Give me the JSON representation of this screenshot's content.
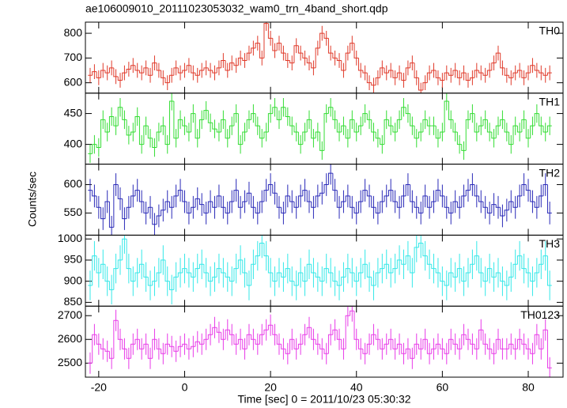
{
  "chart_data": {
    "type": "step",
    "title": "ae106009010_20111023053032_wam0_trn_4band_short.qdp",
    "xlabel": "Time [sec] 0 = 2011/10/23 05:30:32",
    "ylabel": "Counts/sec",
    "xlim": [
      -23.1,
      88.1
    ],
    "xticks": [
      -20,
      0,
      20,
      40,
      60,
      80
    ],
    "x": [
      -22,
      -21,
      -20,
      -19,
      -18,
      -17,
      -16,
      -15,
      -14,
      -13,
      -12,
      -11,
      -10,
      -9,
      -8,
      -7,
      -6,
      -5,
      -4,
      -3,
      -2,
      -1,
      0,
      1,
      2,
      3,
      4,
      5,
      6,
      7,
      8,
      9,
      10,
      11,
      12,
      13,
      14,
      15,
      16,
      17,
      18,
      19,
      20,
      21,
      22,
      23,
      24,
      25,
      26,
      27,
      28,
      29,
      30,
      31,
      32,
      33,
      34,
      35,
      36,
      37,
      38,
      39,
      40,
      41,
      42,
      43,
      44,
      45,
      46,
      47,
      48,
      49,
      50,
      51,
      52,
      53,
      54,
      55,
      56,
      57,
      58,
      59,
      60,
      61,
      62,
      63,
      64,
      65,
      66,
      67,
      68,
      69,
      70,
      71,
      72,
      73,
      74,
      75,
      76,
      77,
      78,
      79,
      80,
      81,
      82,
      83,
      84,
      85
    ],
    "panels": [
      {
        "name": "TH0",
        "color": "#e03a2a",
        "yerr": 30,
        "ylim": [
          558,
          845
        ],
        "yticks": [
          600,
          700,
          800
        ],
        "values": [
          630,
          645,
          620,
          650,
          640,
          660,
          625,
          610,
          640,
          655,
          670,
          650,
          640,
          660,
          630,
          680,
          650,
          620,
          600,
          630,
          660,
          640,
          650,
          670,
          640,
          630,
          650,
          660,
          650,
          640,
          660,
          690,
          650,
          680,
          670,
          700,
          690,
          720,
          740,
          760,
          700,
          840,
          780,
          730,
          760,
          720,
          690,
          680,
          750,
          720,
          700,
          680,
          660,
          740,
          800,
          780,
          720,
          700,
          690,
          650,
          720,
          760,
          700,
          650,
          640,
          600,
          590,
          620,
          660,
          640,
          650,
          620,
          640,
          610,
          660,
          680,
          620,
          570,
          600,
          640,
          650,
          620,
          610,
          640,
          630,
          650,
          620,
          640,
          610,
          620,
          650,
          640,
          630,
          650,
          680,
          720,
          660,
          630,
          620,
          640,
          650,
          620,
          640,
          670,
          650,
          640,
          630,
          640
        ]
      },
      {
        "name": "TH1",
        "color": "#33dd33",
        "yerr": 15,
        "ylim": [
          368,
          483
        ],
        "yticks": [
          400,
          450
        ],
        "values": [
          385,
          400,
          395,
          440,
          420,
          445,
          430,
          460,
          440,
          415,
          420,
          445,
          400,
          430,
          410,
          395,
          420,
          430,
          400,
          470,
          410,
          440,
          430,
          420,
          450,
          410,
          440,
          455,
          435,
          425,
          420,
          440,
          410,
          430,
          450,
          400,
          420,
          440,
          450,
          430,
          410,
          420,
          450,
          460,
          440,
          460,
          445,
          430,
          420,
          400,
          420,
          440,
          410,
          420,
          390,
          450,
          460,
          440,
          420,
          430,
          410,
          440,
          420,
          430,
          450,
          440,
          420,
          410,
          400,
          440,
          430,
          420,
          440,
          460,
          450,
          430,
          410,
          420,
          440,
          430,
          430,
          410,
          420,
          470,
          440,
          420,
          400,
          390,
          440,
          450,
          420,
          430,
          440,
          420,
          410,
          430,
          440,
          420,
          400,
          430,
          420,
          440,
          410,
          430,
          450,
          430,
          420,
          430
        ]
      },
      {
        "name": "TH2",
        "color": "#2a2ab8",
        "yerr": 20,
        "ylim": [
          511,
          636
        ],
        "yticks": [
          550,
          600
        ],
        "values": [
          590,
          580,
          560,
          540,
          570,
          525,
          600,
          575,
          540,
          560,
          580,
          590,
          570,
          550,
          560,
          530,
          545,
          555,
          570,
          560,
          580,
          590,
          570,
          550,
          560,
          575,
          565,
          550,
          570,
          560,
          580,
          560,
          550,
          570,
          590,
          560,
          570,
          585,
          560,
          550,
          570,
          590,
          600,
          585,
          560,
          550,
          580,
          570,
          560,
          580,
          590,
          570,
          560,
          580,
          585,
          600,
          620,
          590,
          560,
          570,
          580,
          560,
          550,
          570,
          590,
          580,
          560,
          550,
          570,
          580,
          590,
          570,
          560,
          580,
          600,
          570,
          560,
          550,
          580,
          560,
          570,
          590,
          580,
          560,
          550,
          570,
          560,
          580,
          590,
          600,
          580,
          570,
          560,
          550,
          565,
          560,
          545,
          555,
          570,
          560,
          580,
          600,
          590,
          570,
          560,
          580,
          600,
          550
        ]
      },
      {
        "name": "TH3",
        "color": "#33e8e8",
        "yerr": 35,
        "ylim": [
          841,
          1009
        ],
        "yticks": [
          850,
          900,
          950,
          1000
        ],
        "values": [
          890,
          960,
          920,
          940,
          900,
          880,
          930,
          950,
          1000,
          930,
          900,
          920,
          940,
          910,
          890,
          900,
          920,
          950,
          900,
          880,
          910,
          920,
          930,
          920,
          910,
          930,
          940,
          920,
          900,
          910,
          930,
          920,
          910,
          900,
          930,
          950,
          920,
          890,
          940,
          960,
          990,
          960,
          920,
          900,
          920,
          910,
          930,
          900,
          890,
          920,
          900,
          940,
          920,
          910,
          900,
          930,
          920,
          900,
          890,
          910,
          930,
          920,
          900,
          920,
          940,
          910,
          890,
          920,
          930,
          940,
          920,
          930,
          950,
          940,
          960,
          920,
          980,
          990,
          960,
          940,
          930,
          920,
          900,
          890,
          920,
          910,
          930,
          900,
          920,
          940,
          960,
          920,
          900,
          930,
          910,
          920,
          900,
          890,
          910,
          940,
          960,
          930,
          920,
          900,
          920,
          940,
          960,
          890
        ]
      },
      {
        "name": "TH0123",
        "color": "#e83ae8",
        "yerr": 45,
        "ylim": [
          2441,
          2740
        ],
        "yticks": [
          2500,
          2600,
          2700
        ],
        "values": [
          2500,
          2620,
          2580,
          2560,
          2550,
          2520,
          2680,
          2600,
          2560,
          2520,
          2580,
          2600,
          2560,
          2580,
          2520,
          2600,
          2560,
          2540,
          2580,
          2570,
          2550,
          2570,
          2580,
          2560,
          2570,
          2590,
          2580,
          2600,
          2620,
          2650,
          2630,
          2600,
          2640,
          2620,
          2580,
          2600,
          2560,
          2620,
          2600,
          2580,
          2620,
          2640,
          2660,
          2620,
          2580,
          2560,
          2540,
          2600,
          2560,
          2580,
          2620,
          2650,
          2600,
          2580,
          2560,
          2540,
          2620,
          2640,
          2600,
          2560,
          2700,
          2720,
          2600,
          2560,
          2540,
          2580,
          2620,
          2600,
          2560,
          2580,
          2600,
          2560,
          2580,
          2540,
          2560,
          2520,
          2580,
          2560,
          2600,
          2540,
          2560,
          2580,
          2560,
          2540,
          2600,
          2580,
          2560,
          2620,
          2600,
          2580,
          2560,
          2640,
          2580,
          2560,
          2540,
          2600,
          2560,
          2560,
          2580,
          2560,
          2600,
          2580,
          2560,
          2540,
          2620,
          2560,
          2640,
          2480
        ]
      }
    ]
  }
}
